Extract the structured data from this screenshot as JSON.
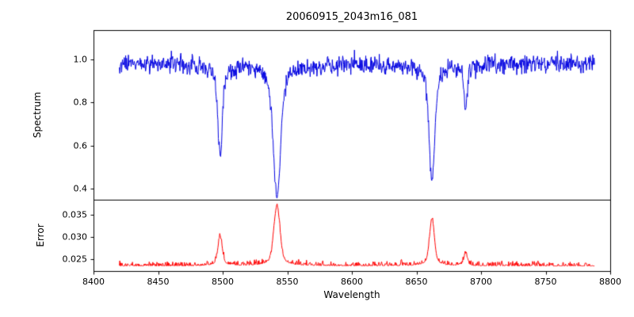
{
  "chart_data": {
    "type": "line",
    "title": "20060915_2043m16_081",
    "xlabel": "Wavelength",
    "xlim": [
      8400,
      8800
    ],
    "x_ticks": [
      8400,
      8450,
      8500,
      8550,
      8600,
      8650,
      8700,
      8750,
      8800
    ],
    "x_tick_labels": [
      "8400",
      "8450",
      "8500",
      "8550",
      "8600",
      "8650",
      "8700",
      "8750",
      "8800"
    ],
    "x_data_range": [
      8420,
      8788
    ],
    "grid": false,
    "legend": "none",
    "panels": [
      {
        "name": "spectrum",
        "ylabel": "Spectrum",
        "ylim": [
          0.349,
          1.136
        ],
        "y_ticks": [
          0.4,
          0.6,
          0.8,
          1.0
        ],
        "y_tick_labels": [
          "0.4",
          "0.6",
          "0.8",
          "1.0"
        ],
        "color": "#0000e0",
        "continuum": 0.98,
        "noise_sigma": 0.022,
        "absorption_lines": [
          {
            "center": 8498,
            "depth_min_value": 0.56,
            "depth": 0.43,
            "sigma": 1.6
          },
          {
            "center": 8542,
            "depth_min_value": 0.37,
            "depth": 0.63,
            "sigma": 2.6
          },
          {
            "center": 8662,
            "depth_min_value": 0.45,
            "depth": 0.55,
            "sigma": 2.0
          },
          {
            "center": 8688,
            "depth_min_value": 0.79,
            "depth": 0.2,
            "sigma": 1.2
          }
        ]
      },
      {
        "name": "error",
        "ylabel": "Error",
        "ylim": [
          0.0223,
          0.0384
        ],
        "y_ticks": [
          0.025,
          0.03,
          0.035
        ],
        "y_tick_labels": [
          "0.025",
          "0.030",
          "0.035"
        ],
        "color": "#ff0000",
        "baseline": 0.0235,
        "noise_sigma": 0.00045,
        "peaks": [
          {
            "center": 8498,
            "peak_value": 0.03,
            "amp": 0.0066,
            "sigma": 1.6
          },
          {
            "center": 8542,
            "peak_value": 0.037,
            "amp": 0.0135,
            "sigma": 2.2
          },
          {
            "center": 8662,
            "peak_value": 0.034,
            "amp": 0.0105,
            "sigma": 1.8
          },
          {
            "center": 8688,
            "peak_value": 0.0265,
            "amp": 0.0028,
            "sigma": 1.2
          }
        ]
      }
    ]
  }
}
